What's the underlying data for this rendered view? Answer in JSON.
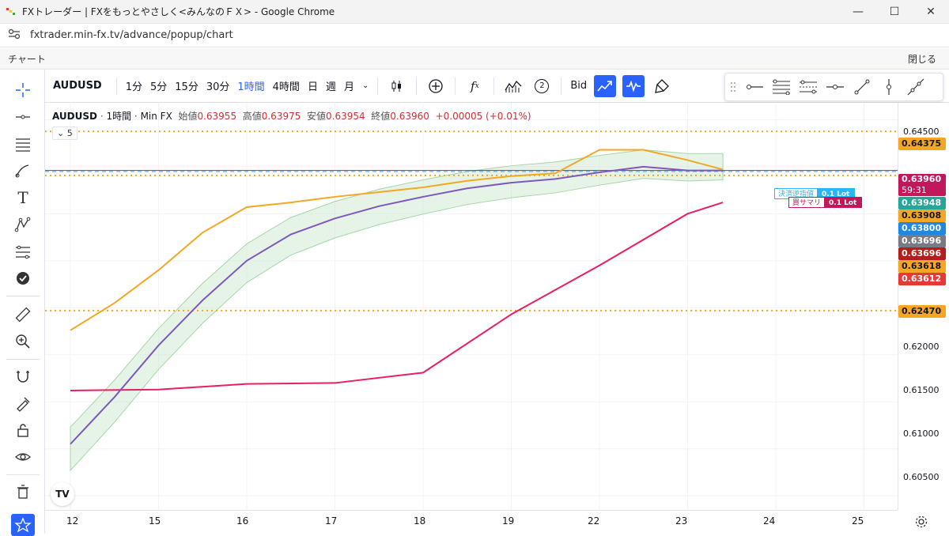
{
  "window": {
    "title": "FXトレーダー | FXをもっとやさしく<みんなのＦＸ> - Google Chrome",
    "url": "fxtrader.min-fx.tv/advance/popup/chart"
  },
  "appbar": {
    "title": "チャート",
    "close_label": "閉じる"
  },
  "toolbar": {
    "symbol": "AUDUSD",
    "timeframes": [
      "1分",
      "5分",
      "15分",
      "30分",
      "1時間",
      "4時間",
      "日",
      "週",
      "月"
    ],
    "active_timeframe": "1時間",
    "indicator_count": "2",
    "price_type": "Bid"
  },
  "legend": {
    "symbol": "AUDUSD",
    "interval": "1時間",
    "source": "Min FX",
    "open_label": "始値",
    "open": "0.63955",
    "high_label": "高値",
    "high": "0.63975",
    "low_label": "安値",
    "low": "0.63954",
    "close_label": "終値",
    "close": "0.63960",
    "change": "+0.00005 (+0.01%)",
    "collapsed_count": "5"
  },
  "price_axis": {
    "ticks": [
      "0.64500",
      "0.64000",
      "0.63500",
      "0.63000",
      "0.62500",
      "0.62000",
      "0.61500",
      "0.61000",
      "0.60500"
    ],
    "tags": [
      {
        "value": "0.64375",
        "color": "#f5a623",
        "text_color": "#131722"
      },
      {
        "value": "0.63960",
        "color": "#c2185b",
        "text_color": "#ffffff",
        "countdown": "59:31"
      },
      {
        "value": "0.63948",
        "color": "#26a69a",
        "text_color": "#ffffff"
      },
      {
        "value": "0.63908",
        "color": "#f5a623",
        "text_color": "#131722"
      },
      {
        "value": "0.63800",
        "color": "#1e88e5",
        "text_color": "#ffffff"
      },
      {
        "value": "0.63696",
        "color": "#787b86",
        "text_color": "#ffffff"
      },
      {
        "value": "0.63696",
        "color": "#b71c1c",
        "text_color": "#ffffff"
      },
      {
        "value": "0.63618",
        "color": "#f5a623",
        "text_color": "#131722"
      },
      {
        "value": "0.63612",
        "color": "#e53935",
        "text_color": "#ffffff"
      },
      {
        "value": "0.62470",
        "color": "#f5a623",
        "text_color": "#131722"
      }
    ]
  },
  "time_axis": {
    "labels": [
      "12",
      "15",
      "16",
      "17",
      "18",
      "19",
      "22",
      "23",
      "24",
      "25"
    ]
  },
  "orders": [
    {
      "label": "決済逆指値",
      "lot": "0.1 Lot",
      "color": "#29b6f6"
    },
    {
      "label": "買サマリ",
      "lot": "0.1 Lot",
      "color": "#c2185b"
    }
  ],
  "colors": {
    "up": "#26a69a",
    "down": "#c2185b",
    "ma_fast": "#f5a623",
    "ma_mid": "#7e57c2",
    "ma_slow": "#e91e63",
    "cloud": "#c8e6c9",
    "level": "#f5a623"
  },
  "chart_data": {
    "type": "line",
    "symbol": "AUDUSD",
    "ylim": [
      0.6035,
      0.6468
    ],
    "x_labels": [
      "12",
      "15",
      "16",
      "17",
      "18",
      "19",
      "22",
      "23",
      "24",
      "25"
    ],
    "horizontal_levels": [
      0.64375,
      0.63908,
      0.6247
    ],
    "current_price": 0.6396,
    "series": [
      {
        "name": "",
        "color": "#e91e63",
        "x": [
          0,
          1,
          2,
          3,
          4,
          5,
          6,
          7,
          7.4
        ],
        "values": [
          0.6162,
          0.6163,
          0.6169,
          0.617,
          0.6181,
          0.6243,
          0.6295,
          0.635,
          0.6362
        ]
      },
      {
        "name": "",
        "color": "#7e57c2",
        "x": [
          0,
          0.5,
          1,
          1.5,
          2,
          2.5,
          3,
          3.5,
          4,
          4.5,
          5,
          5.5,
          6,
          6.5,
          7,
          7.4
        ],
        "values": [
          0.6105,
          0.6155,
          0.621,
          0.6258,
          0.63,
          0.6328,
          0.6345,
          0.6358,
          0.6368,
          0.6377,
          0.6383,
          0.6387,
          0.6394,
          0.64,
          0.6396,
          0.6396
        ]
      },
      {
        "name": "",
        "color": "#f5a623",
        "x": [
          0,
          0.5,
          1,
          1.5,
          2,
          2.5,
          3,
          3.5,
          4,
          4.5,
          5,
          5.5,
          6,
          6.5,
          7,
          7.4
        ],
        "values": [
          0.6226,
          0.6255,
          0.629,
          0.633,
          0.6357,
          0.6362,
          0.6368,
          0.6373,
          0.6378,
          0.6385,
          0.639,
          0.6393,
          0.6418,
          0.6418,
          0.6407,
          0.6397
        ]
      }
    ]
  }
}
